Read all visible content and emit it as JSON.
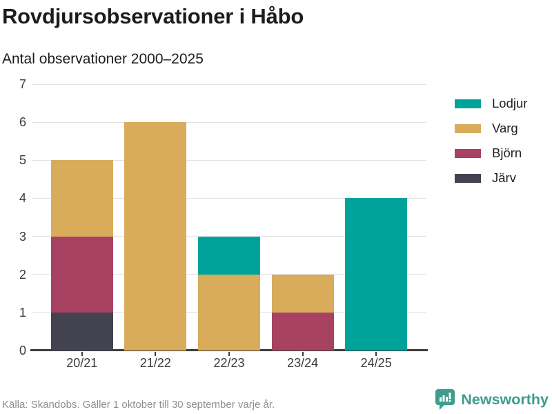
{
  "header": {
    "title": "Rovdjursobservationer i Håbo",
    "subtitle": "Antal observationer 2000–2025"
  },
  "chart_data": {
    "type": "bar",
    "stacked": true,
    "title": "Rovdjursobservationer i Håbo",
    "subtitle": "Antal observationer 2000–2025",
    "categories": [
      "20/21",
      "21/22",
      "22/23",
      "23/24",
      "24/25"
    ],
    "series": [
      {
        "name": "Järv",
        "color": "#434250",
        "values": [
          1,
          0,
          0,
          0,
          0
        ]
      },
      {
        "name": "Björn",
        "color": "#a84263",
        "values": [
          2,
          0,
          0,
          1,
          0
        ]
      },
      {
        "name": "Varg",
        "color": "#d8ac5b",
        "values": [
          2,
          6,
          2,
          1,
          0
        ]
      },
      {
        "name": "Lodjur",
        "color": "#00a39a",
        "values": [
          0,
          0,
          1,
          0,
          4
        ]
      }
    ],
    "totals": [
      5,
      6,
      3,
      2,
      4
    ],
    "legend": [
      "Lodjur",
      "Varg",
      "Björn",
      "Järv"
    ],
    "legend_position": "right",
    "xlabel": "",
    "ylabel": "",
    "ylim": [
      0,
      7
    ],
    "yticks": [
      0,
      1,
      2,
      3,
      4,
      5,
      6,
      7
    ],
    "grid": true
  },
  "footer": {
    "source": "Källa: Skandobs. Gäller 1 oktober till 30 september varje år.",
    "brand": "Newsworthy"
  },
  "colors": {
    "lodjur": "#00a39a",
    "varg": "#d8ac5b",
    "bjorn": "#a84263",
    "jarv": "#434250",
    "brand": "#3e9d8e",
    "grid": "#e3e3e3",
    "axis": "#3c3c3c",
    "text": "#1c1c1c",
    "muted": "#8e8e8e"
  }
}
